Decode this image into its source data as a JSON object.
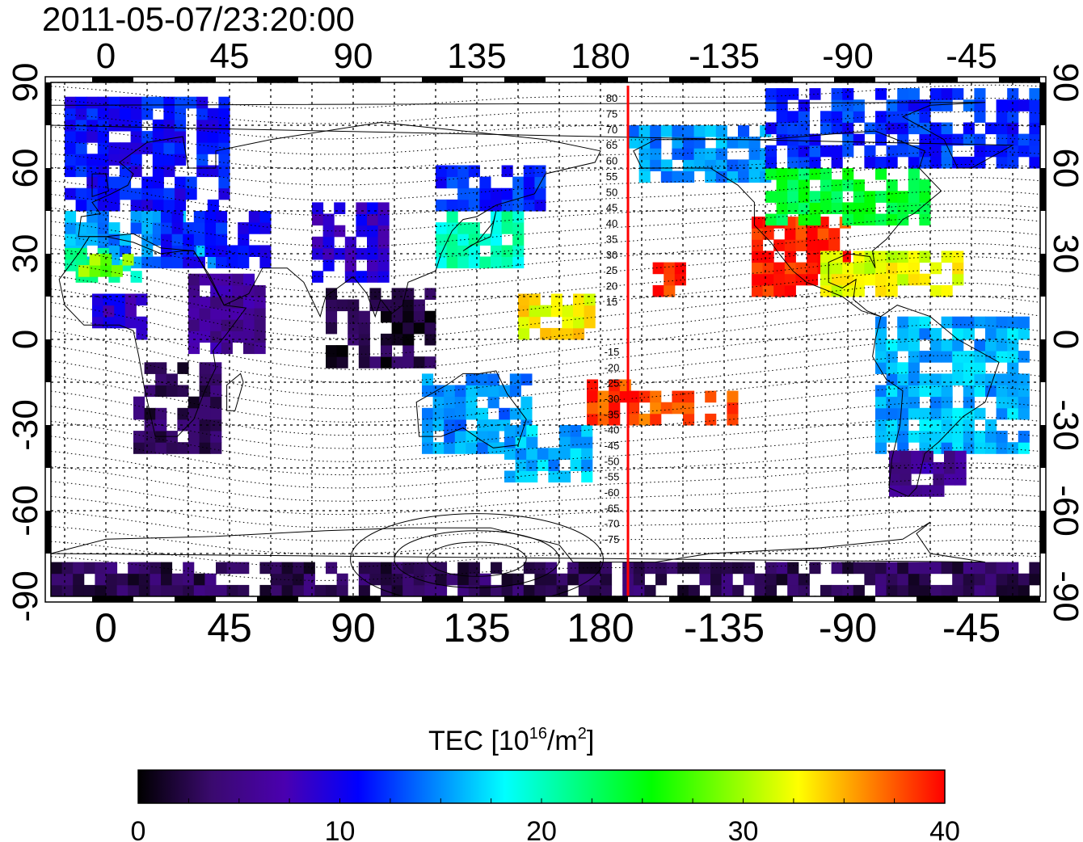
{
  "title": "2011-05-07/23:20:00",
  "map": {
    "top_lon_labels": [
      "0",
      "45",
      "90",
      "135",
      "180",
      "-135",
      "-90",
      "-45"
    ],
    "bottom_lon_labels": [
      "0",
      "45",
      "90",
      "135",
      "180",
      "-135",
      "-90",
      "-45"
    ],
    "lat_labels": [
      "90",
      "60",
      "30",
      "0",
      "-30",
      "-60",
      "-90"
    ],
    "contour_labels_north": [
      "80",
      "75",
      "70",
      "65",
      "60",
      "55",
      "50",
      "45",
      "40",
      "35",
      "30",
      "25",
      "20",
      "15"
    ],
    "contour_labels_south": [
      "-15",
      "-20",
      "-25",
      "-30",
      "-35",
      "-40",
      "-45",
      "-50",
      "-55",
      "-60",
      "-65",
      "-70",
      "-75"
    ],
    "meridian_marker_color": "#ff0000"
  },
  "colorbar": {
    "label_main": "TEC  [10",
    "label_exp": "16",
    "label_unit": "/m",
    "label_unit_exp": "2",
    "label_close": "]",
    "ticks": [
      "0",
      "10",
      "20",
      "30",
      "40"
    ]
  },
  "chart_data": {
    "type": "heatmap",
    "title": "2011-05-07/23:20:00",
    "xlabel": "",
    "ylabel": "",
    "x_range": [
      -20,
      340
    ],
    "y_range": [
      -90,
      90
    ],
    "x_tick_labels": [
      "0",
      "45",
      "90",
      "135",
      "180",
      "-135",
      "-90",
      "-45"
    ],
    "y_tick_labels": [
      "-90",
      "-60",
      "-30",
      "0",
      "30",
      "60",
      "90"
    ],
    "grid": true,
    "colorbar": {
      "label": "TEC [10^16/m^2]",
      "min": 0,
      "max": 40,
      "ticks": [
        0,
        10,
        20,
        30,
        40
      ]
    },
    "colormap": [
      "#000000",
      "#3a0a6e",
      "#4a00b0",
      "#0000ff",
      "#0080ff",
      "#00ffff",
      "#00ff80",
      "#00ff00",
      "#80ff00",
      "#ffff00",
      "#ff8000",
      "#ff0000"
    ],
    "marker_longitude": -170,
    "regions": [
      {
        "lon": [
          -15,
          45
        ],
        "lat": [
          45,
          85
        ],
        "tec": 11
      },
      {
        "lon": [
          -15,
          40
        ],
        "lat": [
          25,
          45
        ],
        "tec": 15
      },
      {
        "lon": [
          -15,
          10
        ],
        "lat": [
          20,
          32
        ],
        "tec": 21
      },
      {
        "lon": [
          -10,
          10
        ],
        "lat": [
          22,
          28
        ],
        "tec": 29
      },
      {
        "lon": [
          20,
          60
        ],
        "lat": [
          25,
          45
        ],
        "tec": 11
      },
      {
        "lon": [
          30,
          55
        ],
        "lat": [
          -5,
          20
        ],
        "tec": 6
      },
      {
        "lon": [
          10,
          40
        ],
        "lat": [
          -40,
          -10
        ],
        "tec": 3
      },
      {
        "lon": [
          -5,
          15
        ],
        "lat": [
          0,
          15
        ],
        "tec": 9
      },
      {
        "lon": [
          75,
          100
        ],
        "lat": [
          20,
          45
        ],
        "tec": 9
      },
      {
        "lon": [
          80,
          120
        ],
        "lat": [
          -10,
          15
        ],
        "tec": 2
      },
      {
        "lon": [
          120,
          150
        ],
        "lat": [
          25,
          45
        ],
        "tec": 20
      },
      {
        "lon": [
          120,
          160
        ],
        "lat": [
          45,
          60
        ],
        "tec": 12
      },
      {
        "lon": [
          115,
          155
        ],
        "lat": [
          -40,
          -15
        ],
        "tec": 15
      },
      {
        "lon": [
          145,
          175
        ],
        "lat": [
          -50,
          -30
        ],
        "tec": 16
      },
      {
        "lon": [
          150,
          175
        ],
        "lat": [
          0,
          15
        ],
        "tec": 33
      },
      {
        "lon": [
          175,
          190
        ],
        "lat": [
          -30,
          -15
        ],
        "tec": 38
      },
      {
        "lon": [
          190,
          230
        ],
        "lat": [
          -30,
          -20
        ],
        "tec": 38
      },
      {
        "lon": [
          195,
          210
        ],
        "lat": [
          15,
          25
        ],
        "tec": 39
      },
      {
        "lon": [
          190,
          240
        ],
        "lat": [
          55,
          75
        ],
        "tec": 15
      },
      {
        "lon": [
          235,
          270
        ],
        "lat": [
          15,
          40
        ],
        "tec": 39
      },
      {
        "lon": [
          240,
          300
        ],
        "lat": [
          40,
          60
        ],
        "tec": 24
      },
      {
        "lon": [
          260,
          310
        ],
        "lat": [
          15,
          30
        ],
        "tec": 32
      },
      {
        "lon": [
          240,
          340
        ],
        "lat": [
          60,
          85
        ],
        "tec": 12
      },
      {
        "lon": [
          280,
          335
        ],
        "lat": [
          -40,
          5
        ],
        "tec": 16
      },
      {
        "lon": [
          285,
          310
        ],
        "lat": [
          -55,
          -40
        ],
        "tec": 6
      },
      {
        "lon": [
          -20,
          340
        ],
        "lat": [
          -90,
          -78
        ],
        "tec": 3
      }
    ]
  }
}
